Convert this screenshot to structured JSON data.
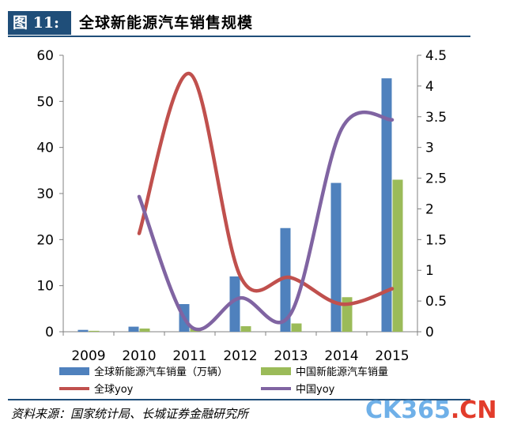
{
  "figure": {
    "label": "图 11:",
    "title": "全球新能源汽车销售规模",
    "source": "资料来源：国家统计局、长城证券金融研究所"
  },
  "watermark": {
    "main": "CK365",
    "dot": ".",
    "suffix": "CN"
  },
  "colors": {
    "global_sales": "#4f81bd",
    "china_sales": "#9bbb59",
    "global_yoy": "#c0504d",
    "china_yoy": "#8064a2",
    "header_bg": "#1f4e79"
  },
  "chart_data": {
    "type": "bar",
    "categories": [
      "2009",
      "2010",
      "2011",
      "2012",
      "2013",
      "2014",
      "2015"
    ],
    "series": [
      {
        "name": "全球新能源汽车销量（万辆）",
        "type": "bar",
        "axis": "left",
        "values": [
          0.4,
          1.1,
          6.0,
          12.0,
          22.5,
          32.3,
          55.0
        ]
      },
      {
        "name": "中国新能源汽车销量",
        "type": "bar",
        "axis": "left",
        "values": [
          0.2,
          0.7,
          0.8,
          1.2,
          1.8,
          7.5,
          33.0
        ]
      },
      {
        "name": "全球yoy",
        "type": "line",
        "axis": "right",
        "values": [
          null,
          1.6,
          4.2,
          0.9,
          0.88,
          0.45,
          0.7
        ]
      },
      {
        "name": "中国yoy",
        "type": "line",
        "axis": "right",
        "values": [
          null,
          2.2,
          0.1,
          0.55,
          0.3,
          3.3,
          3.45
        ]
      }
    ],
    "yleft": {
      "ylim": [
        0,
        60
      ],
      "ticks": [
        "0",
        "10",
        "20",
        "30",
        "40",
        "50",
        "60"
      ]
    },
    "yright": {
      "ylim": [
        0,
        4.5
      ],
      "ticks": [
        "0",
        "0.5",
        "1",
        "1.5",
        "2",
        "2.5",
        "3",
        "3.5",
        "4",
        "4.5"
      ]
    },
    "legend": {
      "placement": "bottom",
      "items": [
        "全球新能源汽车销量（万辆）",
        "中国新能源汽车销量",
        "全球yoy",
        "中国yoy"
      ]
    },
    "grid": false
  }
}
